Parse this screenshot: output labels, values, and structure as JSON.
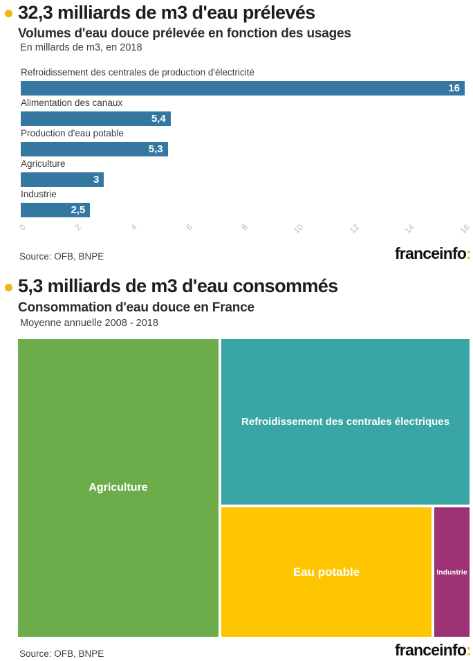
{
  "brand": {
    "logo_text": "franceinfo",
    "logo_colon": ":",
    "accent_gold": "#f2b313"
  },
  "colors": {
    "bar_blue": "#3478a2",
    "tick_gray": "#bdbdbd"
  },
  "chart1": {
    "title": "32,3 milliards de m3 d'eau prélevés",
    "subtitle": "Volumes d'eau douce prélevée en fonction des usages",
    "note": "En millards de m3, en 2018",
    "source": "Source: OFB, BNPE",
    "bars": [
      {
        "label": "Refroidissement des centrales de production d'électricité",
        "value": "16"
      },
      {
        "label": "Alimentation des canaux",
        "value": "5,4"
      },
      {
        "label": "Production d'eau potable",
        "value": "5,3"
      },
      {
        "label": "Agriculture",
        "value": "3"
      },
      {
        "label": "Industrie",
        "value": "2,5"
      }
    ],
    "ticks": [
      "0",
      "2",
      "4",
      "6",
      "8",
      "10",
      "12",
      "14",
      "16"
    ]
  },
  "chart2": {
    "title": "5,3 milliards de m3 d'eau consommés",
    "subtitle": "Consommation d'eau douce en France",
    "note": "Moyenne annuelle 2008 - 2018",
    "source": "Source: OFB, BNPE",
    "cells": [
      {
        "label": "Agriculture",
        "color": "#6dac4b"
      },
      {
        "label": "Refroidissement des centrales électriques",
        "color": "#39a5a4"
      },
      {
        "label": "Eau potable",
        "color": "#fec601"
      },
      {
        "label": "Industrie",
        "color": "#9c3273"
      }
    ]
  },
  "chart_data": [
    {
      "type": "bar",
      "orientation": "horizontal",
      "title": "32,3 milliards de m3 d'eau prélevés",
      "subtitle": "Volumes d'eau douce prélevée en fonction des usages",
      "unit_note": "En millards de m3, en 2018",
      "categories": [
        "Refroidissement des centrales de production d'électricité",
        "Alimentation des canaux",
        "Production d'eau potable",
        "Agriculture",
        "Industrie"
      ],
      "values": [
        16,
        5.4,
        5.3,
        3,
        2.5
      ],
      "value_labels": [
        "16",
        "5,4",
        "5,3",
        "3",
        "2,5"
      ],
      "xlim": [
        0,
        16
      ],
      "x_ticks": [
        0,
        2,
        4,
        6,
        8,
        10,
        12,
        14,
        16
      ],
      "bar_color": "#3478a2",
      "grid": false,
      "source": "Source: OFB, BNPE"
    },
    {
      "type": "pie",
      "variant": "treemap",
      "title": "5,3 milliards de m3 d'eau consommés",
      "subtitle": "Consommation d'eau douce en France",
      "note": "Moyenne annuelle 2008 - 2018",
      "labels": [
        "Agriculture",
        "Refroidissement des centrales électriques",
        "Eau potable",
        "Industrie"
      ],
      "values_estimated_mds_m3": [
        2.4,
        1.6,
        1.1,
        0.2
      ],
      "share_pct_estimated": [
        45,
        31,
        20,
        4
      ],
      "total_mds_m3": 5.3,
      "colors": [
        "#6dac4b",
        "#39a5a4",
        "#fec601",
        "#9c3273"
      ],
      "source": "Source: OFB, BNPE"
    }
  ]
}
